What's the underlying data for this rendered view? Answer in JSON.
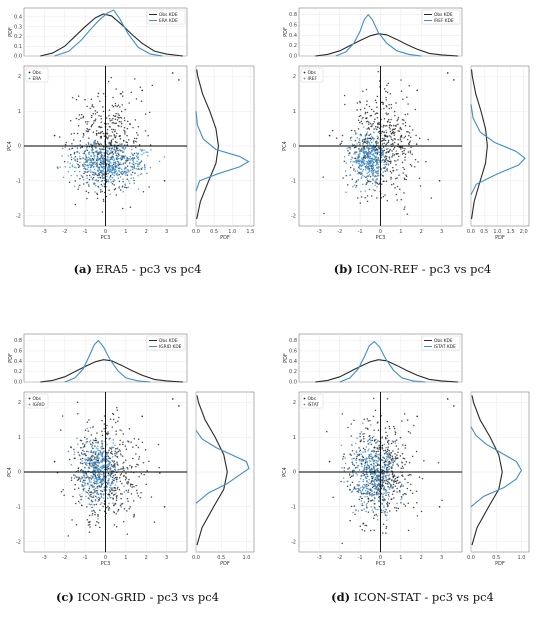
{
  "colors": {
    "obs": "#2a2a2a",
    "model": "#3f8fcf",
    "grid": "#e2e2e2",
    "frame": "#666666"
  },
  "chart_data": [
    {
      "type": "scatter",
      "caption_label": "(a)",
      "caption_text": "ERA5 - pc3 vs pc4",
      "xlabel": "PC3",
      "ylabel": "PC4",
      "top_ylabel": "PDF",
      "right_xlabel": "PDF",
      "xlim": [
        -4,
        4
      ],
      "ylim": [
        -2.3,
        2.3
      ],
      "xticks": [
        -3,
        -2,
        -1,
        0,
        1,
        2,
        3
      ],
      "yticks": [
        -2,
        -1,
        0,
        1,
        2
      ],
      "top_ylim": [
        0,
        0.45
      ],
      "top_yticks": [
        "0.0",
        "0.1",
        "0.2",
        "0.3",
        "0.4"
      ],
      "right_xlim": [
        0,
        1.6
      ],
      "right_xticks": [
        "0.0",
        "0.5",
        "1.0",
        "1.5"
      ],
      "grid": true,
      "legend_scatter": "top-left",
      "legend_kde": "top-right",
      "series": [
        {
          "name": "Obs",
          "kind": "scatter",
          "n": 520,
          "center": [
            0.0,
            0.0
          ],
          "spread": [
            0.85,
            0.72
          ],
          "outliers": [
            [
              3.3,
              2.1
            ],
            [
              3.6,
              1.9
            ],
            [
              1.8,
              1.6
            ],
            [
              -2.5,
              0.3
            ],
            [
              2.9,
              -1.0
            ]
          ]
        },
        {
          "name": "ERA",
          "kind": "scatter",
          "n": 520,
          "center": [
            0.1,
            -0.5
          ],
          "spread": [
            0.9,
            0.3
          ],
          "outliers": []
        }
      ],
      "kde_legend": [
        "Obs KDE",
        "ERA KDE"
      ],
      "kde_x": {
        "obs": [
          [
            -3.2,
            0.0
          ],
          [
            -2.6,
            0.03
          ],
          [
            -2.0,
            0.1
          ],
          [
            -1.5,
            0.2
          ],
          [
            -1.0,
            0.3
          ],
          [
            -0.5,
            0.39
          ],
          [
            -0.1,
            0.43
          ],
          [
            0.3,
            0.41
          ],
          [
            0.8,
            0.32
          ],
          [
            1.3,
            0.22
          ],
          [
            1.8,
            0.13
          ],
          [
            2.4,
            0.05
          ],
          [
            3.0,
            0.02
          ],
          [
            3.8,
            0.0
          ]
        ],
        "model": [
          [
            -2.5,
            0.0
          ],
          [
            -1.8,
            0.05
          ],
          [
            -1.2,
            0.16
          ],
          [
            -0.7,
            0.28
          ],
          [
            -0.3,
            0.37
          ],
          [
            0.1,
            0.44
          ],
          [
            0.4,
            0.47
          ],
          [
            0.7,
            0.38
          ],
          [
            1.1,
            0.23
          ],
          [
            1.6,
            0.09
          ],
          [
            2.2,
            0.02
          ],
          [
            2.8,
            0.0
          ]
        ]
      },
      "kde_y": {
        "obs": [
          [
            -2.1,
            0.02
          ],
          [
            -1.6,
            0.12
          ],
          [
            -1.0,
            0.35
          ],
          [
            -0.5,
            0.55
          ],
          [
            0.0,
            0.62
          ],
          [
            0.5,
            0.55
          ],
          [
            1.0,
            0.38
          ],
          [
            1.5,
            0.18
          ],
          [
            2.0,
            0.05
          ],
          [
            2.2,
            0.02
          ]
        ],
        "model": [
          [
            -1.3,
            0.0
          ],
          [
            -1.0,
            0.1
          ],
          [
            -0.8,
            0.6
          ],
          [
            -0.6,
            1.2
          ],
          [
            -0.45,
            1.45
          ],
          [
            -0.3,
            1.2
          ],
          [
            -0.1,
            0.55
          ],
          [
            0.2,
            0.2
          ],
          [
            0.6,
            0.04
          ],
          [
            1.0,
            0.0
          ]
        ]
      }
    },
    {
      "type": "scatter",
      "caption_label": "(b)",
      "caption_text": "ICON-REF - pc3 vs pc4",
      "xlabel": "PC3",
      "ylabel": "PC4",
      "top_ylabel": "PDF",
      "right_xlabel": "PDF",
      "xlim": [
        -4,
        4
      ],
      "ylim": [
        -2.3,
        2.3
      ],
      "xticks": [
        -3,
        -2,
        -1,
        0,
        1,
        2,
        3
      ],
      "yticks": [
        -2,
        -1,
        0,
        1,
        2
      ],
      "top_ylim": [
        0,
        0.85
      ],
      "top_yticks": [
        "0.0",
        "0.2",
        "0.4",
        "0.6",
        "0.8"
      ],
      "right_xlim": [
        0,
        2.2
      ],
      "right_xticks": [
        "0.0",
        "0.5",
        "1.0",
        "1.5",
        "2.0"
      ],
      "grid": true,
      "legend_scatter": "top-left",
      "legend_kde": "top-right",
      "series": [
        {
          "name": "Obs",
          "kind": "scatter",
          "n": 520,
          "center": [
            0.0,
            0.0
          ],
          "spread": [
            0.85,
            0.72
          ],
          "outliers": [
            [
              3.3,
              2.1
            ],
            [
              3.6,
              1.9
            ],
            [
              1.8,
              1.6
            ],
            [
              -2.5,
              0.3
            ],
            [
              2.9,
              -1.0
            ]
          ]
        },
        {
          "name": "IREF",
          "kind": "scatter",
          "n": 420,
          "center": [
            -0.6,
            -0.35
          ],
          "spread": [
            0.45,
            0.35
          ],
          "outliers": []
        }
      ],
      "kde_legend": [
        "Obs KDE",
        "IREF KDE"
      ],
      "kde_x": {
        "obs": [
          [
            -3.2,
            0.0
          ],
          [
            -2.6,
            0.03
          ],
          [
            -2.0,
            0.1
          ],
          [
            -1.5,
            0.2
          ],
          [
            -1.0,
            0.3
          ],
          [
            -0.5,
            0.39
          ],
          [
            -0.1,
            0.43
          ],
          [
            0.3,
            0.41
          ],
          [
            0.8,
            0.32
          ],
          [
            1.3,
            0.22
          ],
          [
            1.8,
            0.13
          ],
          [
            2.4,
            0.05
          ],
          [
            3.0,
            0.02
          ],
          [
            3.8,
            0.0
          ]
        ],
        "model": [
          [
            -2.2,
            0.0
          ],
          [
            -1.7,
            0.08
          ],
          [
            -1.3,
            0.25
          ],
          [
            -1.0,
            0.48
          ],
          [
            -0.8,
            0.7
          ],
          [
            -0.6,
            0.8
          ],
          [
            -0.4,
            0.7
          ],
          [
            -0.1,
            0.45
          ],
          [
            0.3,
            0.25
          ],
          [
            0.8,
            0.1
          ],
          [
            1.4,
            0.03
          ],
          [
            2.0,
            0.0
          ]
        ]
      },
      "kde_y": {
        "obs": [
          [
            -2.1,
            0.02
          ],
          [
            -1.6,
            0.12
          ],
          [
            -1.0,
            0.35
          ],
          [
            -0.5,
            0.55
          ],
          [
            0.0,
            0.62
          ],
          [
            0.5,
            0.55
          ],
          [
            1.0,
            0.38
          ],
          [
            1.5,
            0.18
          ],
          [
            2.0,
            0.05
          ],
          [
            2.2,
            0.02
          ]
        ],
        "model": [
          [
            -1.4,
            0.0
          ],
          [
            -1.1,
            0.2
          ],
          [
            -0.8,
            1.0
          ],
          [
            -0.55,
            1.8
          ],
          [
            -0.35,
            2.05
          ],
          [
            -0.15,
            1.7
          ],
          [
            0.1,
            0.9
          ],
          [
            0.4,
            0.35
          ],
          [
            0.8,
            0.08
          ],
          [
            1.2,
            0.0
          ]
        ]
      }
    },
    {
      "type": "scatter",
      "caption_label": "(c)",
      "caption_text": "ICON-GRID - pc3 vs pc4",
      "xlabel": "PC3",
      "ylabel": "PC4",
      "top_ylabel": "PDF",
      "right_xlabel": "PDF",
      "xlim": [
        -4,
        4
      ],
      "ylim": [
        -2.3,
        2.3
      ],
      "xticks": [
        -3,
        -2,
        -1,
        0,
        1,
        2,
        3
      ],
      "yticks": [
        -2,
        -1,
        0,
        1,
        2
      ],
      "top_ylim": [
        0,
        0.85
      ],
      "top_yticks": [
        "0.0",
        "0.2",
        "0.4",
        "0.6",
        "0.8"
      ],
      "right_xlim": [
        0,
        1.15
      ],
      "right_xticks": [
        "0.0",
        "0.5",
        "1.0"
      ],
      "grid": true,
      "legend_scatter": "top-left",
      "legend_kde": "top-right",
      "series": [
        {
          "name": "Obs",
          "kind": "scatter",
          "n": 520,
          "center": [
            0.0,
            0.0
          ],
          "spread": [
            0.85,
            0.72
          ],
          "outliers": [
            [
              3.3,
              2.1
            ],
            [
              3.6,
              1.9
            ],
            [
              1.8,
              1.6
            ],
            [
              -2.5,
              0.3
            ],
            [
              2.9,
              -1.0
            ]
          ]
        },
        {
          "name": "IGRID",
          "kind": "scatter",
          "n": 420,
          "center": [
            -0.3,
            0.0
          ],
          "spread": [
            0.5,
            0.45
          ],
          "outliers": []
        }
      ],
      "kde_legend": [
        "Obs KDE",
        "IGRID KDE"
      ],
      "kde_x": {
        "obs": [
          [
            -3.2,
            0.0
          ],
          [
            -2.6,
            0.03
          ],
          [
            -2.0,
            0.1
          ],
          [
            -1.5,
            0.2
          ],
          [
            -1.0,
            0.3
          ],
          [
            -0.5,
            0.39
          ],
          [
            -0.1,
            0.43
          ],
          [
            0.3,
            0.41
          ],
          [
            0.8,
            0.32
          ],
          [
            1.3,
            0.22
          ],
          [
            1.8,
            0.13
          ],
          [
            2.4,
            0.05
          ],
          [
            3.0,
            0.02
          ],
          [
            3.8,
            0.0
          ]
        ],
        "model": [
          [
            -2.0,
            0.0
          ],
          [
            -1.5,
            0.08
          ],
          [
            -1.1,
            0.25
          ],
          [
            -0.8,
            0.5
          ],
          [
            -0.55,
            0.72
          ],
          [
            -0.35,
            0.8
          ],
          [
            -0.1,
            0.68
          ],
          [
            0.2,
            0.45
          ],
          [
            0.6,
            0.22
          ],
          [
            1.0,
            0.08
          ],
          [
            1.6,
            0.02
          ],
          [
            2.2,
            0.0
          ]
        ]
      },
      "kde_y": {
        "obs": [
          [
            -2.1,
            0.02
          ],
          [
            -1.6,
            0.12
          ],
          [
            -1.0,
            0.35
          ],
          [
            -0.5,
            0.55
          ],
          [
            0.0,
            0.62
          ],
          [
            0.5,
            0.55
          ],
          [
            1.0,
            0.38
          ],
          [
            1.5,
            0.18
          ],
          [
            2.0,
            0.05
          ],
          [
            2.2,
            0.02
          ]
        ],
        "model": [
          [
            -0.9,
            0.0
          ],
          [
            -0.6,
            0.25
          ],
          [
            -0.35,
            0.6
          ],
          [
            -0.1,
            0.85
          ],
          [
            0.1,
            1.05
          ],
          [
            0.3,
            1.0
          ],
          [
            0.5,
            0.7
          ],
          [
            0.7,
            0.4
          ],
          [
            0.95,
            0.12
          ],
          [
            1.2,
            0.0
          ]
        ]
      }
    },
    {
      "type": "scatter",
      "caption_label": "(d)",
      "caption_text": "ICON-STAT - pc3 vs pc4",
      "xlabel": "PC3",
      "ylabel": "PC4",
      "top_ylabel": "PDF",
      "right_xlabel": "PDF",
      "xlim": [
        -4,
        4
      ],
      "ylim": [
        -2.3,
        2.3
      ],
      "xticks": [
        -3,
        -2,
        -1,
        0,
        1,
        2,
        3
      ],
      "yticks": [
        -2,
        -1,
        0,
        1,
        2
      ],
      "top_ylim": [
        0,
        0.85
      ],
      "top_yticks": [
        "0.0",
        "0.2",
        "0.4",
        "0.6",
        "0.8"
      ],
      "right_xlim": [
        0,
        1.15
      ],
      "right_xticks": [
        "0.0",
        "0.5",
        "1.0"
      ],
      "grid": true,
      "legend_scatter": "top-left",
      "legend_kde": "top-right",
      "series": [
        {
          "name": "Obs",
          "kind": "scatter",
          "n": 520,
          "center": [
            0.0,
            0.0
          ],
          "spread": [
            0.85,
            0.72
          ],
          "outliers": [
            [
              3.3,
              2.1
            ],
            [
              3.6,
              1.9
            ],
            [
              1.8,
              1.6
            ],
            [
              -2.5,
              0.3
            ],
            [
              2.9,
              -1.0
            ]
          ]
        },
        {
          "name": "ISTAT",
          "kind": "scatter",
          "n": 420,
          "center": [
            -0.3,
            -0.05
          ],
          "spread": [
            0.55,
            0.5
          ],
          "outliers": []
        }
      ],
      "kde_legend": [
        "Obs KDE",
        "ISTAT KDE"
      ],
      "kde_x": {
        "obs": [
          [
            -3.2,
            0.0
          ],
          [
            -2.6,
            0.03
          ],
          [
            -2.0,
            0.1
          ],
          [
            -1.5,
            0.2
          ],
          [
            -1.0,
            0.3
          ],
          [
            -0.5,
            0.39
          ],
          [
            -0.1,
            0.43
          ],
          [
            0.3,
            0.41
          ],
          [
            0.8,
            0.32
          ],
          [
            1.3,
            0.22
          ],
          [
            1.8,
            0.13
          ],
          [
            2.4,
            0.05
          ],
          [
            3.0,
            0.02
          ],
          [
            3.8,
            0.0
          ]
        ],
        "model": [
          [
            -2.0,
            0.0
          ],
          [
            -1.5,
            0.08
          ],
          [
            -1.1,
            0.25
          ],
          [
            -0.8,
            0.48
          ],
          [
            -0.55,
            0.7
          ],
          [
            -0.3,
            0.78
          ],
          [
            -0.05,
            0.68
          ],
          [
            0.25,
            0.45
          ],
          [
            0.65,
            0.22
          ],
          [
            1.05,
            0.08
          ],
          [
            1.6,
            0.02
          ],
          [
            2.2,
            0.0
          ]
        ]
      },
      "kde_y": {
        "obs": [
          [
            -2.1,
            0.02
          ],
          [
            -1.6,
            0.12
          ],
          [
            -1.0,
            0.35
          ],
          [
            -0.5,
            0.55
          ],
          [
            0.0,
            0.62
          ],
          [
            0.5,
            0.55
          ],
          [
            1.0,
            0.38
          ],
          [
            1.5,
            0.18
          ],
          [
            2.0,
            0.05
          ],
          [
            2.2,
            0.02
          ]
        ],
        "model": [
          [
            -1.0,
            0.0
          ],
          [
            -0.7,
            0.25
          ],
          [
            -0.45,
            0.65
          ],
          [
            -0.2,
            0.9
          ],
          [
            0.05,
            1.0
          ],
          [
            0.3,
            0.9
          ],
          [
            0.55,
            0.6
          ],
          [
            0.8,
            0.3
          ],
          [
            1.05,
            0.1
          ],
          [
            1.3,
            0.0
          ]
        ]
      }
    }
  ]
}
